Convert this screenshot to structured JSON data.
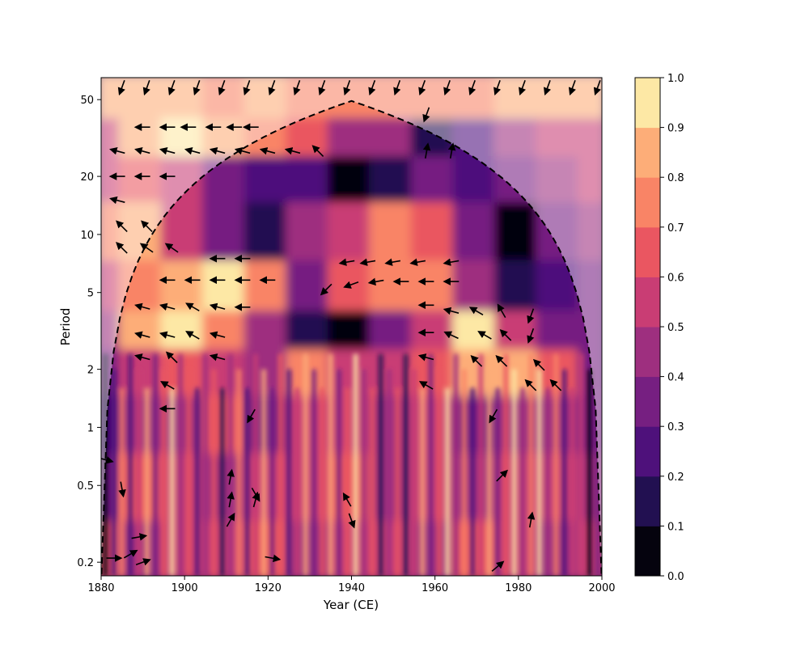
{
  "chart_data": {
    "type": "heatmap",
    "subtype": "wavelet-coherence",
    "title": "",
    "xlabel": "Year (CE)",
    "ylabel": "Period",
    "xlim": [
      1880,
      2000
    ],
    "ylim": [
      0.17,
      65
    ],
    "yscale": "log",
    "xticks": [
      1880,
      1900,
      1920,
      1940,
      1960,
      1980,
      2000
    ],
    "yticks": [
      0.2,
      0.5,
      1,
      2,
      5,
      10,
      20,
      50
    ],
    "colorbar": {
      "label": "",
      "ticks": [
        0.0,
        0.1,
        0.2,
        0.3,
        0.4,
        0.5,
        0.6,
        0.7,
        0.8,
        0.9,
        1.0
      ],
      "levels": [
        "#05030e",
        "#221051",
        "#4e117b",
        "#761f81",
        "#9e2f7f",
        "#c93d74",
        "#ea5661",
        "#f98466",
        "#fdad78",
        "#fde8a5"
      ],
      "colormap": "magma"
    },
    "cone_of_influence": "dashed",
    "coherence_grid": {
      "years": [
        1880,
        1890,
        1900,
        1910,
        1920,
        1930,
        1940,
        1950,
        1960,
        1970,
        1980,
        1990,
        2000
      ],
      "periods": [
        50,
        30,
        20,
        10,
        5,
        3,
        2,
        1,
        0.5,
        0.2
      ],
      "values": [
        [
          0.85,
          0.82,
          0.8,
          0.78,
          0.8,
          0.75,
          0.72,
          0.7,
          0.72,
          0.76,
          0.8,
          0.82,
          0.85
        ],
        [
          0.55,
          0.8,
          0.92,
          0.85,
          0.78,
          0.6,
          0.45,
          0.4,
          0.1,
          0.25,
          0.45,
          0.5,
          0.55
        ],
        [
          0.5,
          0.6,
          0.55,
          0.3,
          0.2,
          0.25,
          0.05,
          0.1,
          0.3,
          0.25,
          0.35,
          0.45,
          0.5
        ],
        [
          0.75,
          0.8,
          0.55,
          0.3,
          0.15,
          0.4,
          0.55,
          0.7,
          0.6,
          0.3,
          0.05,
          0.3,
          0.45
        ],
        [
          0.5,
          0.75,
          0.8,
          0.9,
          0.7,
          0.3,
          0.65,
          0.7,
          0.75,
          0.4,
          0.1,
          0.25,
          0.35
        ],
        [
          0.45,
          0.8,
          0.9,
          0.75,
          0.4,
          0.1,
          0.05,
          0.3,
          0.55,
          0.9,
          0.55,
          0.3,
          0.35
        ],
        [
          0.35,
          0.5,
          0.6,
          0.5,
          0.45,
          0.7,
          0.5,
          0.55,
          0.6,
          0.8,
          0.85,
          0.6,
          0.3
        ],
        [
          0.2,
          0.45,
          0.4,
          0.6,
          0.35,
          0.5,
          0.55,
          0.45,
          0.5,
          0.3,
          0.45,
          0.4,
          0.3
        ],
        [
          0.35,
          0.6,
          0.5,
          0.45,
          0.55,
          0.5,
          0.6,
          0.4,
          0.55,
          0.45,
          0.5,
          0.55,
          0.4
        ],
        [
          0.6,
          0.4,
          0.55,
          0.5,
          0.6,
          0.45,
          0.5,
          0.55,
          0.45,
          0.6,
          0.5,
          0.45,
          0.5
        ]
      ]
    },
    "phase_arrows": [
      {
        "year": 1885,
        "period": 58,
        "angle": 250
      },
      {
        "year": 1891,
        "period": 58,
        "angle": 250
      },
      {
        "year": 1897,
        "period": 58,
        "angle": 250
      },
      {
        "year": 1903,
        "period": 58,
        "angle": 250
      },
      {
        "year": 1909,
        "period": 58,
        "angle": 250
      },
      {
        "year": 1915,
        "period": 58,
        "angle": 250
      },
      {
        "year": 1921,
        "period": 58,
        "angle": 250
      },
      {
        "year": 1927,
        "period": 58,
        "angle": 250
      },
      {
        "year": 1933,
        "period": 58,
        "angle": 250
      },
      {
        "year": 1939,
        "period": 58,
        "angle": 250
      },
      {
        "year": 1945,
        "period": 58,
        "angle": 250
      },
      {
        "year": 1951,
        "period": 58,
        "angle": 250
      },
      {
        "year": 1957,
        "period": 58,
        "angle": 250
      },
      {
        "year": 1963,
        "period": 58,
        "angle": 250
      },
      {
        "year": 1969,
        "period": 58,
        "angle": 250
      },
      {
        "year": 1975,
        "period": 58,
        "angle": 250
      },
      {
        "year": 1981,
        "period": 58,
        "angle": 250
      },
      {
        "year": 1987,
        "period": 58,
        "angle": 250
      },
      {
        "year": 1993,
        "period": 58,
        "angle": 250
      },
      {
        "year": 1999,
        "period": 58,
        "angle": 250
      },
      {
        "year": 1958,
        "period": 42,
        "angle": 250
      },
      {
        "year": 1958,
        "period": 27,
        "angle": 80
      },
      {
        "year": 1964,
        "period": 27,
        "angle": 80
      },
      {
        "year": 1890,
        "period": 36,
        "angle": 180
      },
      {
        "year": 1896,
        "period": 36,
        "angle": 180
      },
      {
        "year": 1901,
        "period": 36,
        "angle": 180
      },
      {
        "year": 1907,
        "period": 36,
        "angle": 180
      },
      {
        "year": 1912,
        "period": 36,
        "angle": 180
      },
      {
        "year": 1916,
        "period": 36,
        "angle": 180
      },
      {
        "year": 1884,
        "period": 27,
        "angle": 165
      },
      {
        "year": 1890,
        "period": 27,
        "angle": 165
      },
      {
        "year": 1896,
        "period": 27,
        "angle": 165
      },
      {
        "year": 1902,
        "period": 27,
        "angle": 165
      },
      {
        "year": 1908,
        "period": 27,
        "angle": 165
      },
      {
        "year": 1914,
        "period": 27,
        "angle": 165
      },
      {
        "year": 1920,
        "period": 27,
        "angle": 165
      },
      {
        "year": 1926,
        "period": 27,
        "angle": 165
      },
      {
        "year": 1932,
        "period": 27,
        "angle": 135
      },
      {
        "year": 1884,
        "period": 20,
        "angle": 180
      },
      {
        "year": 1890,
        "period": 20,
        "angle": 180
      },
      {
        "year": 1896,
        "period": 20,
        "angle": 180
      },
      {
        "year": 1884,
        "period": 15,
        "angle": 165
      },
      {
        "year": 1885,
        "period": 11,
        "angle": 135
      },
      {
        "year": 1891,
        "period": 11,
        "angle": 135
      },
      {
        "year": 1885,
        "period": 8.5,
        "angle": 135
      },
      {
        "year": 1891,
        "period": 8.5,
        "angle": 145
      },
      {
        "year": 1897,
        "period": 8.5,
        "angle": 145
      },
      {
        "year": 1908,
        "period": 7.5,
        "angle": 180
      },
      {
        "year": 1914,
        "period": 7.5,
        "angle": 180
      },
      {
        "year": 1939,
        "period": 7.2,
        "angle": 190
      },
      {
        "year": 1944,
        "period": 7.2,
        "angle": 190
      },
      {
        "year": 1950,
        "period": 7.2,
        "angle": 190
      },
      {
        "year": 1956,
        "period": 7.2,
        "angle": 190
      },
      {
        "year": 1964,
        "period": 7.2,
        "angle": 190
      },
      {
        "year": 1896,
        "period": 5.8,
        "angle": 180
      },
      {
        "year": 1902,
        "period": 5.8,
        "angle": 180
      },
      {
        "year": 1908,
        "period": 5.8,
        "angle": 180
      },
      {
        "year": 1914,
        "period": 5.8,
        "angle": 180
      },
      {
        "year": 1920,
        "period": 5.8,
        "angle": 180
      },
      {
        "year": 1934,
        "period": 5.2,
        "angle": 225
      },
      {
        "year": 1940,
        "period": 5.5,
        "angle": 200
      },
      {
        "year": 1946,
        "period": 5.7,
        "angle": 190
      },
      {
        "year": 1952,
        "period": 5.7,
        "angle": 180
      },
      {
        "year": 1958,
        "period": 5.7,
        "angle": 180
      },
      {
        "year": 1964,
        "period": 5.7,
        "angle": 180
      },
      {
        "year": 1890,
        "period": 4.2,
        "angle": 165
      },
      {
        "year": 1896,
        "period": 4.2,
        "angle": 165
      },
      {
        "year": 1902,
        "period": 4.2,
        "angle": 150
      },
      {
        "year": 1908,
        "period": 4.2,
        "angle": 165
      },
      {
        "year": 1914,
        "period": 4.2,
        "angle": 180
      },
      {
        "year": 1958,
        "period": 4.3,
        "angle": 180
      },
      {
        "year": 1964,
        "period": 4.0,
        "angle": 165
      },
      {
        "year": 1970,
        "period": 4.0,
        "angle": 150
      },
      {
        "year": 1976,
        "period": 4.0,
        "angle": 120
      },
      {
        "year": 1983,
        "period": 3.8,
        "angle": 250
      },
      {
        "year": 1890,
        "period": 3.0,
        "angle": 165
      },
      {
        "year": 1896,
        "period": 3.0,
        "angle": 165
      },
      {
        "year": 1902,
        "period": 3.0,
        "angle": 150
      },
      {
        "year": 1908,
        "period": 3.0,
        "angle": 165
      },
      {
        "year": 1958,
        "period": 3.1,
        "angle": 180
      },
      {
        "year": 1964,
        "period": 3.0,
        "angle": 155
      },
      {
        "year": 1972,
        "period": 3.0,
        "angle": 150
      },
      {
        "year": 1977,
        "period": 3.0,
        "angle": 135
      },
      {
        "year": 1983,
        "period": 3.0,
        "angle": 250
      },
      {
        "year": 1890,
        "period": 2.3,
        "angle": 165
      },
      {
        "year": 1897,
        "period": 2.3,
        "angle": 135
      },
      {
        "year": 1908,
        "period": 2.3,
        "angle": 165
      },
      {
        "year": 1958,
        "period": 2.3,
        "angle": 165
      },
      {
        "year": 1970,
        "period": 2.2,
        "angle": 135
      },
      {
        "year": 1976,
        "period": 2.2,
        "angle": 135
      },
      {
        "year": 1985,
        "period": 2.1,
        "angle": 135
      },
      {
        "year": 1896,
        "period": 1.65,
        "angle": 150
      },
      {
        "year": 1958,
        "period": 1.65,
        "angle": 150
      },
      {
        "year": 1983,
        "period": 1.65,
        "angle": 135
      },
      {
        "year": 1989,
        "period": 1.65,
        "angle": 135
      },
      {
        "year": 1896,
        "period": 1.25,
        "angle": 180
      },
      {
        "year": 1916,
        "period": 1.15,
        "angle": 240
      },
      {
        "year": 1974,
        "period": 1.15,
        "angle": 240
      },
      {
        "year": 1881,
        "period": 0.68,
        "angle": 345
      },
      {
        "year": 1885,
        "period": 0.48,
        "angle": 280
      },
      {
        "year": 1911,
        "period": 0.55,
        "angle": 80
      },
      {
        "year": 1911,
        "period": 0.42,
        "angle": 80
      },
      {
        "year": 1917,
        "period": 0.42,
        "angle": 75
      },
      {
        "year": 1917,
        "period": 0.45,
        "angle": 300
      },
      {
        "year": 1911,
        "period": 0.33,
        "angle": 60
      },
      {
        "year": 1939,
        "period": 0.42,
        "angle": 120
      },
      {
        "year": 1940,
        "period": 0.33,
        "angle": 290
      },
      {
        "year": 1976,
        "period": 0.56,
        "angle": 45
      },
      {
        "year": 1983,
        "period": 0.33,
        "angle": 80
      },
      {
        "year": 1889,
        "period": 0.27,
        "angle": 10
      },
      {
        "year": 1883,
        "period": 0.21,
        "angle": 0
      },
      {
        "year": 1887,
        "period": 0.22,
        "angle": 30
      },
      {
        "year": 1890,
        "period": 0.2,
        "angle": 20
      },
      {
        "year": 1921,
        "period": 0.21,
        "angle": 350
      },
      {
        "year": 1975,
        "period": 0.19,
        "angle": 40
      }
    ]
  }
}
